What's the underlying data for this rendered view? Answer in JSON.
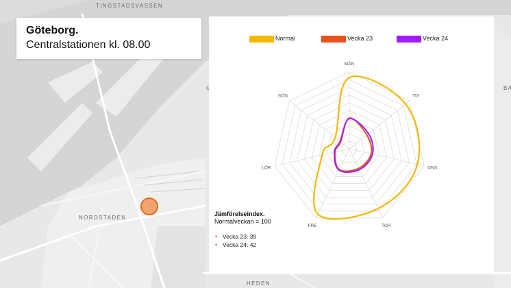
{
  "title": {
    "city": "Göteborg.",
    "subtitle": "Centralstationen  kl. 08.00"
  },
  "map_labels": {
    "tingstadsvassen": "TINGSTADSVASSEN",
    "nordstaden": "NORDSTADEN",
    "heden": "HEDEN",
    "ba": "BA",
    "g": "G"
  },
  "colors": {
    "normal": "#f5b800",
    "vecka23": "#e8521a",
    "vecka24": "#a21cff",
    "marker_fill": "#f2a470",
    "marker_stroke": "#e36d1c"
  },
  "chart_data": {
    "type": "radar",
    "categories": [
      "MÅN",
      "TIS",
      "ONS",
      "TOR",
      "FRE",
      "LÖR",
      "SÖN"
    ],
    "rmax": 110,
    "grid_levels": 10,
    "series": [
      {
        "name": "Normal",
        "values": [
          102,
          103,
          100,
          95,
          104,
          40,
          26
        ]
      },
      {
        "name": "Vecka 23",
        "values": [
          44,
          32,
          32,
          31,
          33,
          21,
          16
        ]
      },
      {
        "name": "Vecka 24",
        "values": [
          43,
          35,
          34,
          33,
          34,
          22,
          17
        ]
      }
    ],
    "legend": {
      "position": "top"
    },
    "index": {
      "heading": "Jämförelseindex.",
      "normal_line": "Normalveckan = 100",
      "items": [
        "Vecka 23: 39",
        "Vecka 24: 42"
      ]
    }
  }
}
